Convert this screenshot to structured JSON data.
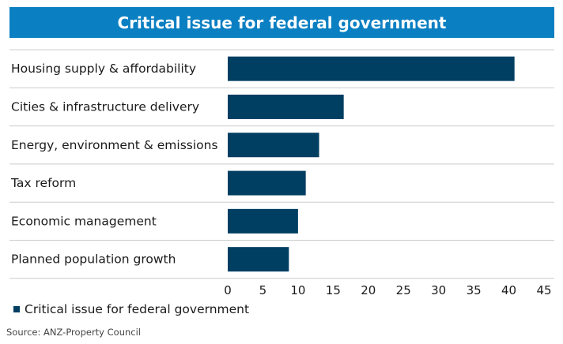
{
  "colors": {
    "title_bg": "#0a7fc2",
    "bar": "#003e62",
    "grid": "#cccccc"
  },
  "title": "Critical issue for federal government",
  "legend": {
    "label": "Critical issue for federal government"
  },
  "source": "Source: ANZ-Property Council",
  "chart_data": {
    "type": "bar",
    "orientation": "horizontal",
    "title": "Critical issue for federal government",
    "categories": [
      "Housing supply & affordability",
      "Cities & infrastructure delivery",
      "Energy, environment & emissions",
      "Tax reform",
      "Economic management",
      "Planned population growth"
    ],
    "series": [
      {
        "name": "Critical issue for federal government",
        "values": [
          40.8,
          16.5,
          13.0,
          11.1,
          10.0,
          8.7
        ]
      }
    ],
    "xlim": [
      0,
      45
    ],
    "xticks": [
      0,
      5,
      10,
      15,
      20,
      25,
      30,
      35,
      40,
      45
    ],
    "xlabel": "",
    "ylabel": "",
    "grid": "horizontal separators between categories",
    "legend_position": "bottom-left"
  }
}
